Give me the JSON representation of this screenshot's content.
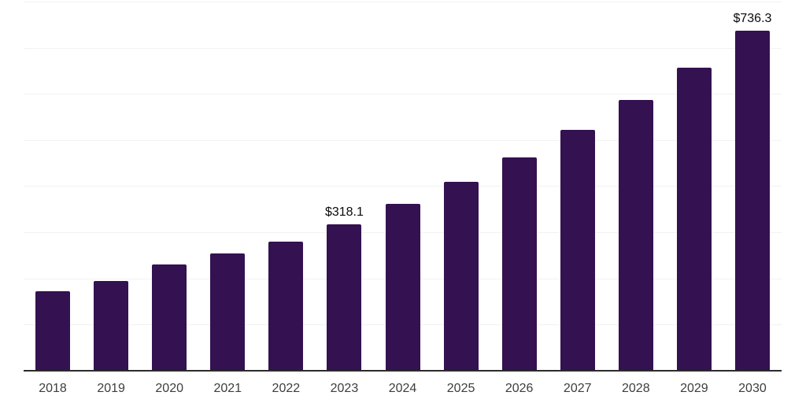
{
  "chart_data": {
    "type": "bar",
    "title": "",
    "xlabel": "",
    "ylabel": "",
    "categories": [
      "2018",
      "2019",
      "2020",
      "2021",
      "2022",
      "2023",
      "2024",
      "2025",
      "2026",
      "2027",
      "2028",
      "2029",
      "2030"
    ],
    "values": [
      172,
      194,
      230,
      254,
      280,
      318.1,
      362,
      410,
      463,
      522,
      587,
      657,
      736.3
    ],
    "point_labels": [
      "",
      "",
      "",
      "",
      "",
      "$318.1",
      "",
      "",
      "",
      "",
      "",
      "",
      "$736.3"
    ],
    "ylim": [
      0,
      800
    ],
    "gridline_interval": 100,
    "y_tick_labels_visible": false,
    "legend": "none",
    "grid": "horizontal",
    "colors": {
      "bar_fill": "#341150",
      "gridline": "#f2f2f2",
      "axis_line": "#2b2b2b",
      "x_tick_label": "#3d3d3d",
      "point_label": "#0a0a0a",
      "background": "#ffffff"
    }
  }
}
